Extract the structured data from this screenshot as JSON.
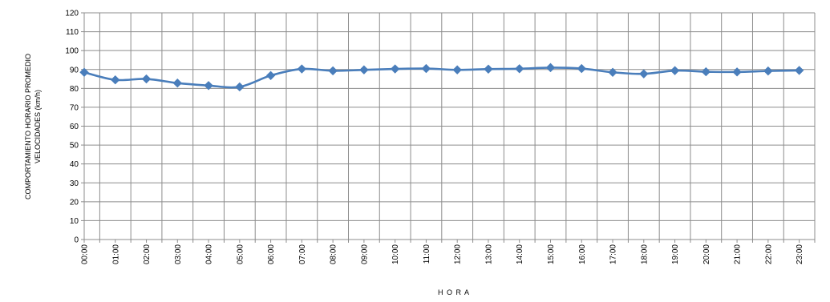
{
  "chart_data": {
    "type": "line",
    "title": "",
    "xlabel": "H O R A",
    "ylabel_line1": "COMPORTAMIENTO  HORARIO PROMEDIO",
    "ylabel_line2": "VELOCIDADES  (km/h)",
    "ylim": [
      0,
      120
    ],
    "y_ticks": [
      "0",
      "10",
      "20",
      "30",
      "40",
      "50",
      "60",
      "70",
      "80",
      "90",
      "100",
      "110",
      "120"
    ],
    "grid": true,
    "legend": "none",
    "categories": [
      "00:00",
      "01:00",
      "02:00",
      "03:00",
      "04:00",
      "05:00",
      "06:00",
      "07:00",
      "08:00",
      "09:00",
      "10:00",
      "11:00",
      "12:00",
      "13:00",
      "14:00",
      "15:00",
      "16:00",
      "17:00",
      "18:00",
      "19:00",
      "20:00",
      "21:00",
      "22:00",
      "23:00"
    ],
    "series": [
      {
        "color": "#4a7ebb",
        "values": [
          88.5,
          84.5,
          85.0,
          82.8,
          81.5,
          80.8,
          86.8,
          90.3,
          89.3,
          89.8,
          90.3,
          90.5,
          89.8,
          90.2,
          90.4,
          91.0,
          90.5,
          88.5,
          87.7,
          89.4,
          88.8,
          88.7,
          89.2,
          89.5
        ]
      }
    ]
  }
}
